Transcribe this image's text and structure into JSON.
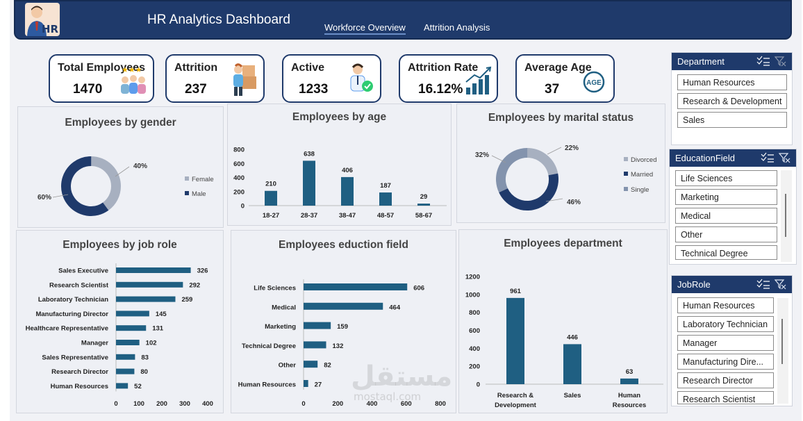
{
  "header": {
    "title": "HR Analytics Dashboard",
    "logo_text": "HR",
    "tabs": [
      {
        "label": "Workforce Overview",
        "active": true
      },
      {
        "label": "Attrition Analysis",
        "active": false
      }
    ]
  },
  "kpis": [
    {
      "label": "Total Employees",
      "value": "1470",
      "icon": "employees-group-icon"
    },
    {
      "label": "Attrition",
      "value": "237",
      "icon": "person-leaving-boxes-icon"
    },
    {
      "label": "Active",
      "value": "1233",
      "icon": "employee-check-icon"
    },
    {
      "label": "Attrition Rate",
      "value": "16.12%",
      "icon": "bar-growth-icon"
    },
    {
      "label": "Average  Age",
      "value": "37",
      "icon": "age-cycle-icon",
      "icon_text": "AGE"
    }
  ],
  "charts": {
    "gender": {
      "title": "Employees by gender",
      "chart_data": {
        "type": "pie",
        "categories": [
          "Female",
          "Male"
        ],
        "values": [
          40,
          60
        ],
        "labels": [
          "40%",
          "60%"
        ],
        "colors": [
          "#a7b0c0",
          "#1f3a6b"
        ],
        "legend": "right"
      }
    },
    "age": {
      "title": "Employees by age",
      "chart_data": {
        "type": "bar",
        "categories": [
          "18-27",
          "28-37",
          "38-47",
          "48-57",
          "58-67"
        ],
        "values": [
          210,
          638,
          406,
          187,
          29
        ],
        "yticks": [
          "0",
          "200",
          "400",
          "600",
          "800"
        ],
        "ylim": [
          0,
          800
        ]
      }
    },
    "marital": {
      "title": "Employees by marital status",
      "chart_data": {
        "type": "pie",
        "categories": [
          "Divorced",
          "Married",
          "Single"
        ],
        "values": [
          22,
          46,
          32
        ],
        "labels": [
          "22%",
          "46%",
          "32%"
        ],
        "colors": [
          "#a7b0c0",
          "#1f3a6b",
          "#8393ad"
        ],
        "legend": "right"
      }
    },
    "jobrole": {
      "title": "Employees by job role",
      "chart_data": {
        "type": "bar",
        "orientation": "horizontal",
        "categories": [
          "Sales Executive",
          "Research Scientist",
          "Laboratory Technician",
          "Manufacturing Director",
          "Healthcare Representative",
          "Manager",
          "Sales Representative",
          "Research Director",
          "Human Resources"
        ],
        "values": [
          326,
          292,
          259,
          145,
          131,
          102,
          83,
          80,
          52
        ],
        "xticks": [
          "0",
          "100",
          "200",
          "300",
          "400"
        ],
        "xlim": [
          0,
          400
        ]
      }
    },
    "education": {
      "title": "Employees eduction field",
      "chart_data": {
        "type": "bar",
        "orientation": "horizontal",
        "categories": [
          "Life Sciences",
          "Medical",
          "Marketing",
          "Technical Degree",
          "Other",
          "Human Resources"
        ],
        "values": [
          606,
          464,
          159,
          132,
          82,
          27
        ],
        "xticks": [
          "0",
          "200",
          "400",
          "600",
          "800"
        ],
        "xlim": [
          0,
          800
        ]
      }
    },
    "department": {
      "title": "Employees department",
      "chart_data": {
        "type": "bar",
        "categories": [
          [
            "Research &",
            "Development"
          ],
          [
            "Sales"
          ],
          [
            "Human",
            "Resources"
          ]
        ],
        "values": [
          961,
          446,
          63
        ],
        "yticks": [
          "0",
          "200",
          "400",
          "600",
          "800",
          "1000",
          "1200"
        ],
        "ylim": [
          0,
          1200
        ]
      }
    }
  },
  "slicers": [
    {
      "title": "Department",
      "items": [
        "Human Resources",
        "Research & Development",
        "Sales"
      ]
    },
    {
      "title": "EducationField",
      "items": [
        "Life Sciences",
        "Marketing",
        "Medical",
        "Other",
        "Technical Degree"
      ]
    },
    {
      "title": "JobRole",
      "items": [
        "Human Resources",
        "Laboratory Technician",
        "Manager",
        "Manufacturing Dire...",
        "Research Director",
        "Research Scientist"
      ]
    }
  ],
  "watermark": {
    "arabic": "مستقل",
    "latin": "mostaql.com"
  },
  "colors": {
    "navy": "#1f3a6b",
    "bar": "#1f5f82",
    "grey": "#a7b0c0"
  }
}
